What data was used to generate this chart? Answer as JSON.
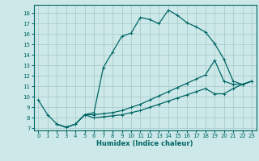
{
  "xlabel": "Humidex (Indice chaleur)",
  "bg_color": "#cde8e8",
  "grid_color": "#aacccc",
  "line_color": "#006666",
  "xlim": [
    -0.5,
    23.5
  ],
  "ylim": [
    6.8,
    18.8
  ],
  "yticks": [
    7,
    8,
    9,
    10,
    11,
    12,
    13,
    14,
    15,
    16,
    17,
    18
  ],
  "xticks": [
    0,
    1,
    2,
    3,
    4,
    5,
    6,
    7,
    8,
    9,
    10,
    11,
    12,
    13,
    14,
    15,
    16,
    17,
    18,
    19,
    20,
    21,
    22,
    23
  ],
  "line1_x": [
    0,
    1,
    2,
    3,
    4,
    5,
    6,
    7,
    8,
    9,
    10,
    11,
    12,
    13,
    14,
    15,
    16,
    17,
    18,
    19,
    20,
    21,
    22,
    23
  ],
  "line1_y": [
    9.7,
    8.3,
    7.4,
    7.1,
    7.4,
    8.3,
    8.5,
    12.8,
    14.3,
    15.8,
    16.1,
    17.6,
    17.4,
    17.0,
    18.3,
    17.8,
    17.1,
    16.7,
    16.2,
    15.1,
    13.6,
    11.5,
    11.2,
    11.5
  ],
  "line2_x": [
    2,
    3,
    4,
    5,
    6,
    7,
    8,
    9,
    10,
    11,
    12,
    13,
    14,
    15,
    16,
    17,
    18,
    19,
    20,
    21,
    22,
    23
  ],
  "line2_y": [
    7.4,
    7.1,
    7.4,
    8.3,
    8.3,
    8.4,
    8.5,
    8.7,
    9.0,
    9.3,
    9.7,
    10.1,
    10.5,
    10.9,
    11.3,
    11.7,
    12.1,
    13.5,
    11.5,
    11.2,
    11.2,
    11.5
  ],
  "line3_x": [
    2,
    3,
    4,
    5,
    6,
    7,
    8,
    9,
    10,
    11,
    12,
    13,
    14,
    15,
    16,
    17,
    18,
    19,
    20,
    21,
    22,
    23
  ],
  "line3_y": [
    7.4,
    7.1,
    7.4,
    8.3,
    8.0,
    8.1,
    8.2,
    8.3,
    8.5,
    8.7,
    9.0,
    9.3,
    9.6,
    9.9,
    10.2,
    10.5,
    10.8,
    10.3,
    10.3,
    10.8,
    11.2,
    11.5
  ]
}
